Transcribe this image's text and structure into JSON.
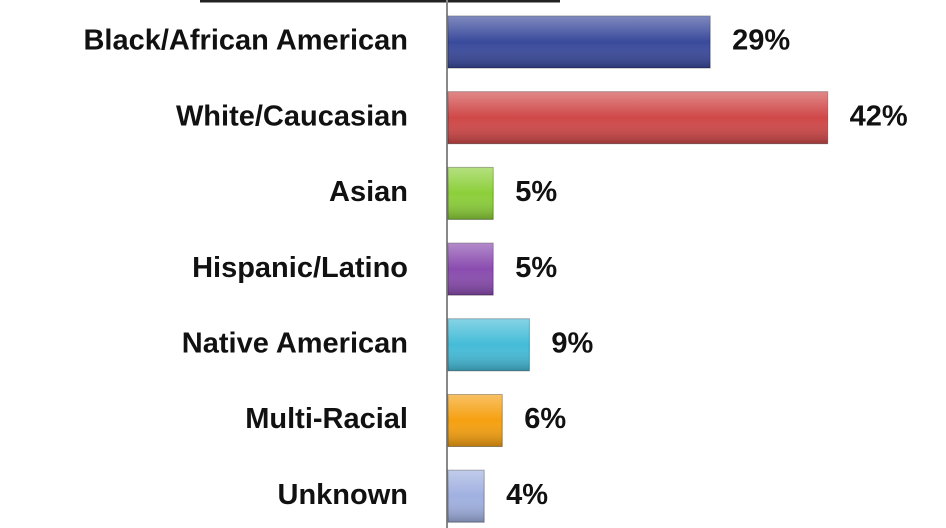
{
  "chart_data": {
    "type": "bar",
    "orientation": "horizontal",
    "categories": [
      "Black/African American",
      "White/Caucasian",
      "Asian",
      "Hispanic/Latino",
      "Native American",
      "Multi-Racial",
      "Unknown"
    ],
    "values": [
      29,
      42,
      5,
      5,
      9,
      6,
      4
    ],
    "value_labels": [
      "29%",
      "42%",
      "5%",
      "5%",
      "9%",
      "6%",
      "4%"
    ],
    "colors": [
      "#3a4a9c",
      "#d04848",
      "#8ccf3a",
      "#8a4caf",
      "#45bcd8",
      "#f5a010",
      "#a0b0e0"
    ],
    "xlim": [
      0,
      50
    ],
    "grid": false
  }
}
